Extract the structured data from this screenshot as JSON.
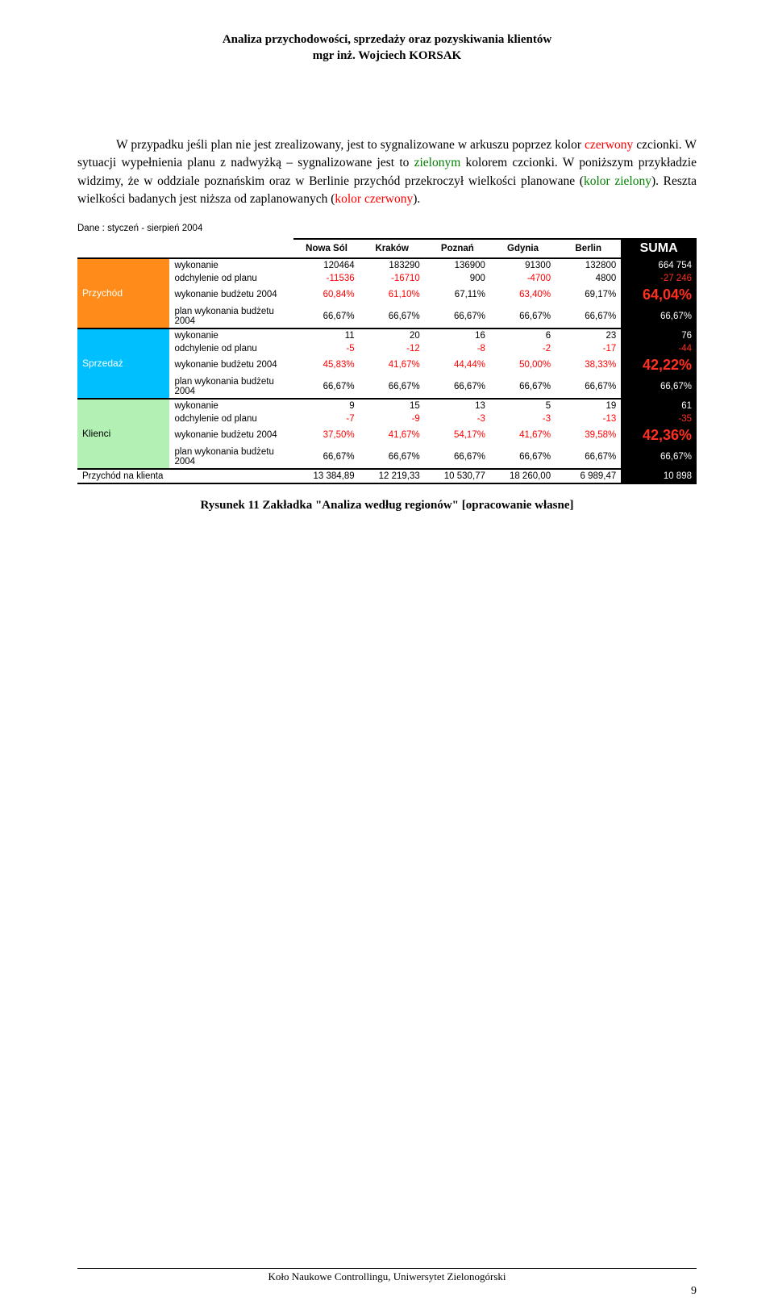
{
  "header": {
    "line1": "Analiza przychodowości, sprzedaży oraz pozyskiwania klientów",
    "line2": "mgr inż. Wojciech KORSAK"
  },
  "paragraph": {
    "s1a": "W przypadku jeśli plan nie jest zrealizowany, jest to sygnalizowane w arkuszu poprzez kolor ",
    "s1_red": "czerwony",
    "s1b": " czcionki. W sytuacji wypełnienia planu z nadwyżką – sygnalizowane jest to ",
    "s1_green": "zielonym",
    "s1c": " kolorem czcionki. W poniższym przykładzie widzimy, że w oddziale poznańskim oraz w Berlinie przychód przekroczył wielkości planowane (",
    "s1_green2": "kolor zielony",
    "s1d": "). Reszta wielkości badanych jest niższa od zaplanowanych (",
    "s1_red2": "kolor czerwony",
    "s1e": ")."
  },
  "table": {
    "date_label": "Dane : styczeń - sierpień 2004",
    "col_headers": [
      "Nowa Sól",
      "Kraków",
      "Poznań",
      "Gdynia",
      "Berlin"
    ],
    "sum_header": "SUMA",
    "sections": [
      {
        "name": "Przychód",
        "cat_color": "orange",
        "rows": [
          {
            "label": "wykonanie",
            "vals": [
              "120464",
              "183290",
              "136900",
              "91300",
              "132800"
            ],
            "neg": [
              false,
              false,
              false,
              false,
              false
            ],
            "sum": "664 754",
            "sum_style": "white"
          },
          {
            "label": "odchylenie od planu",
            "vals": [
              "-11536",
              "-16710",
              "900",
              "-4700",
              "4800"
            ],
            "neg": [
              true,
              true,
              false,
              true,
              false
            ],
            "sum": "-27 246",
            "sum_style": "red"
          },
          {
            "label": "wykonanie budżetu 2004",
            "vals": [
              "60,84%",
              "61,10%",
              "67,11%",
              "63,40%",
              "69,17%"
            ],
            "neg": [
              true,
              true,
              false,
              true,
              false
            ],
            "sum": "64,04%",
            "sum_style": "bigred"
          },
          {
            "label": "plan wykonania budżetu 2004",
            "vals": [
              "66,67%",
              "66,67%",
              "66,67%",
              "66,67%",
              "66,67%"
            ],
            "neg": [
              false,
              false,
              false,
              false,
              false
            ],
            "sum": "66,67%",
            "sum_style": "white"
          }
        ]
      },
      {
        "name": "Sprzedaż",
        "cat_color": "blue",
        "rows": [
          {
            "label": "wykonanie",
            "vals": [
              "11",
              "20",
              "16",
              "6",
              "23"
            ],
            "neg": [
              false,
              false,
              false,
              false,
              false
            ],
            "sum": "76",
            "sum_style": "white"
          },
          {
            "label": "odchylenie od planu",
            "vals": [
              "-5",
              "-12",
              "-8",
              "-2",
              "-17"
            ],
            "neg": [
              true,
              true,
              true,
              true,
              true
            ],
            "sum": "-44",
            "sum_style": "red"
          },
          {
            "label": "wykonanie budżetu 2004",
            "vals": [
              "45,83%",
              "41,67%",
              "44,44%",
              "50,00%",
              "38,33%"
            ],
            "neg": [
              true,
              true,
              true,
              true,
              true
            ],
            "sum": "42,22%",
            "sum_style": "bigred"
          },
          {
            "label": "plan wykonania budżetu 2004",
            "vals": [
              "66,67%",
              "66,67%",
              "66,67%",
              "66,67%",
              "66,67%"
            ],
            "neg": [
              false,
              false,
              false,
              false,
              false
            ],
            "sum": "66,67%",
            "sum_style": "white"
          }
        ]
      },
      {
        "name": "Klienci",
        "cat_color": "lgreen",
        "rows": [
          {
            "label": "wykonanie",
            "vals": [
              "9",
              "15",
              "13",
              "5",
              "19"
            ],
            "neg": [
              false,
              false,
              false,
              false,
              false
            ],
            "sum": "61",
            "sum_style": "white"
          },
          {
            "label": "odchylenie od planu",
            "vals": [
              "-7",
              "-9",
              "-3",
              "-3",
              "-13"
            ],
            "neg": [
              true,
              true,
              true,
              true,
              true
            ],
            "sum": "-35",
            "sum_style": "red"
          },
          {
            "label": "wykonanie budżetu 2004",
            "vals": [
              "37,50%",
              "41,67%",
              "54,17%",
              "41,67%",
              "39,58%"
            ],
            "neg": [
              true,
              true,
              true,
              true,
              true
            ],
            "sum": "42,36%",
            "sum_style": "bigred"
          },
          {
            "label": "plan wykonania budżetu 2004",
            "vals": [
              "66,67%",
              "66,67%",
              "66,67%",
              "66,67%",
              "66,67%"
            ],
            "neg": [
              false,
              false,
              false,
              false,
              false
            ],
            "sum": "66,67%",
            "sum_style": "white"
          }
        ]
      }
    ],
    "footer_row": {
      "name": "Przychód na klienta",
      "vals": [
        "13 384,89",
        "12 219,33",
        "10 530,77",
        "18 260,00",
        "6 989,47"
      ],
      "sum": "10 898"
    }
  },
  "caption": "Rysunek 11 Zakładka \"Analiza według regionów\" [opracowanie własne]",
  "footer": {
    "text": "Koło Naukowe Controllingu, Uniwersytet Zielonogórski",
    "page": "9"
  },
  "colors": {
    "orange": "#ff8c1a",
    "blue": "#00bfff",
    "lightgreen": "#b3f0b3",
    "black": "#000000",
    "red": "#ff0000",
    "green": "#008000"
  }
}
